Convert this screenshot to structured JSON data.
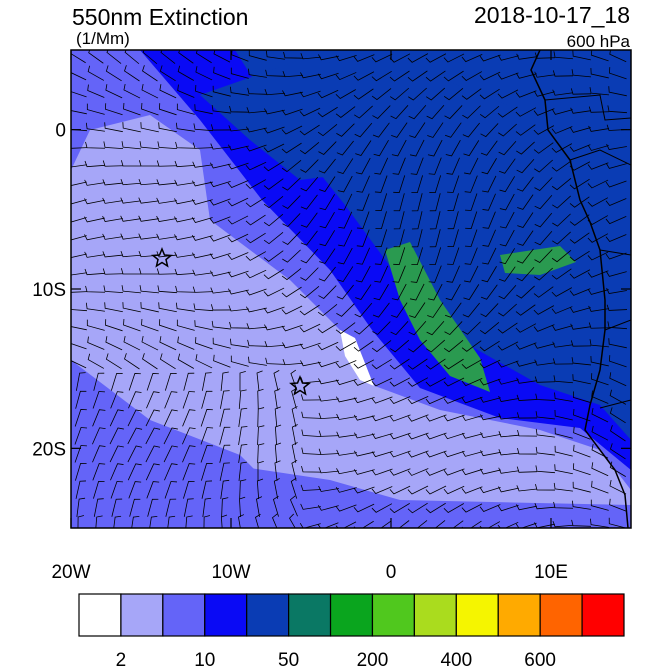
{
  "map": {
    "title": "550nm Extinction",
    "units": "(1/Mm)",
    "datetime": "2018-10-17_18",
    "level": "600 hPa",
    "lon_ticks": [
      {
        "value": -20,
        "label": "20W"
      },
      {
        "value": -10,
        "label": "10W"
      },
      0,
      {
        "value": 10,
        "label": "10E"
      }
    ],
    "lat_ticks": [
      0,
      {
        "value": -10,
        "label": "10S"
      },
      {
        "value": -20,
        "label": "20S"
      }
    ],
    "lonlim": [
      -20,
      15
    ],
    "latlim": [
      -25,
      5
    ],
    "colorbar": {
      "colors": [
        "#ffffff",
        "#a6a6f8",
        "#6464f8",
        "#0a0af5",
        "#0a3cb4",
        "#0a7864",
        "#0aa51e",
        "#50c81e",
        "#aadc1e",
        "#f5f500",
        "#ffaa00",
        "#ff6400",
        "#ff0000"
      ],
      "levels": [
        2,
        10,
        50,
        200,
        400,
        600
      ]
    }
  }
}
